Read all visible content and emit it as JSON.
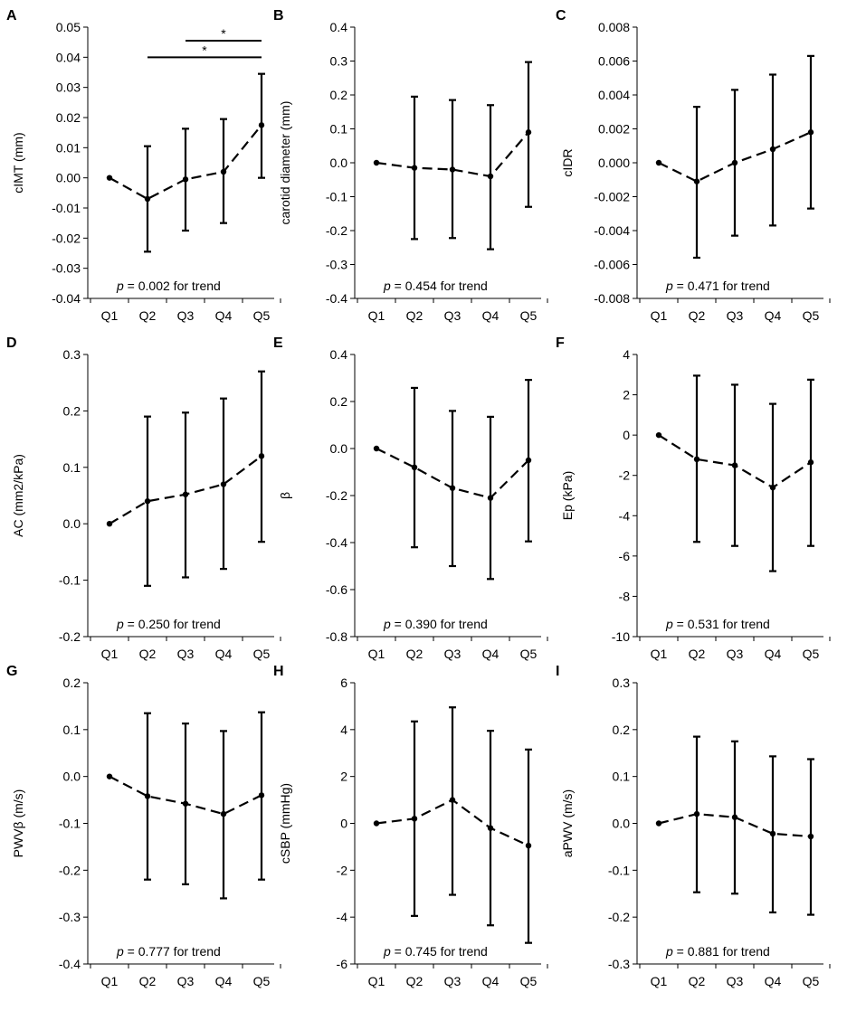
{
  "figure": {
    "background": "#ffffff",
    "ink": "#000000"
  },
  "chart_data": [
    {
      "panel": "A",
      "type": "line",
      "ylabel": "cIMT (mm)",
      "categories": [
        "Q1",
        "Q2",
        "Q3",
        "Q4",
        "Q5"
      ],
      "ylim": [
        -0.04,
        0.05
      ],
      "yticks": [
        -0.04,
        -0.03,
        -0.02,
        -0.01,
        0.0,
        0.01,
        0.02,
        0.03,
        0.04,
        0.05
      ],
      "ytick_labels": [
        "-0.04",
        "-0.03",
        "-0.02",
        "-0.01",
        "0.00",
        "0.01",
        "0.02",
        "0.03",
        "0.04",
        "0.05"
      ],
      "values": [
        0.0,
        -0.007,
        -0.0005,
        0.002,
        0.0175
      ],
      "err_low": [
        null,
        -0.0245,
        -0.0175,
        -0.015,
        0.0
      ],
      "err_high": [
        null,
        0.0105,
        0.0163,
        0.0195,
        0.0345
      ],
      "p_prefix": "p",
      "annotation": " = 0.002 for trend",
      "brackets": [
        {
          "from": "Q3",
          "to": "Q5",
          "y": 0.0455,
          "label": "*"
        },
        {
          "from": "Q2",
          "to": "Q5",
          "y": 0.04,
          "label": "*"
        }
      ]
    },
    {
      "panel": "B",
      "type": "line",
      "ylabel": "carotid diameter (mm)",
      "categories": [
        "Q1",
        "Q2",
        "Q3",
        "Q4",
        "Q5"
      ],
      "ylim": [
        -0.4,
        0.4
      ],
      "yticks": [
        -0.4,
        -0.3,
        -0.2,
        -0.1,
        0.0,
        0.1,
        0.2,
        0.3,
        0.4
      ],
      "ytick_labels": [
        "-0.4",
        "-0.3",
        "-0.2",
        "-0.1",
        "0.0",
        "0.1",
        "0.2",
        "0.3",
        "0.4"
      ],
      "values": [
        0.0,
        -0.015,
        -0.02,
        -0.04,
        0.09
      ],
      "err_low": [
        null,
        -0.225,
        -0.222,
        -0.255,
        -0.13
      ],
      "err_high": [
        null,
        0.195,
        0.185,
        0.17,
        0.297
      ],
      "p_prefix": "p",
      "annotation": " = 0.454 for trend"
    },
    {
      "panel": "C",
      "type": "line",
      "ylabel": "cIDR",
      "categories": [
        "Q1",
        "Q2",
        "Q3",
        "Q4",
        "Q5"
      ],
      "ylim": [
        -0.008,
        0.008
      ],
      "yticks": [
        -0.008,
        -0.006,
        -0.004,
        -0.002,
        0.0,
        0.002,
        0.004,
        0.006,
        0.008
      ],
      "ytick_labels": [
        "-0.008",
        "-0.006",
        "-0.004",
        "-0.002",
        "0.000",
        "0.002",
        "0.004",
        "0.006",
        "0.008"
      ],
      "values": [
        0.0,
        -0.0011,
        0.0,
        0.0008,
        0.0018
      ],
      "err_low": [
        null,
        -0.0056,
        -0.0043,
        -0.0037,
        -0.0027
      ],
      "err_high": [
        null,
        0.0033,
        0.0043,
        0.0052,
        0.0063
      ],
      "p_prefix": "p",
      "annotation": " = 0.471 for trend"
    },
    {
      "panel": "D",
      "type": "line",
      "ylabel": "AC (mm2/kPa)",
      "categories": [
        "Q1",
        "Q2",
        "Q3",
        "Q4",
        "Q5"
      ],
      "ylim": [
        -0.2,
        0.3
      ],
      "yticks": [
        -0.2,
        -0.1,
        0.0,
        0.1,
        0.2,
        0.3
      ],
      "ytick_labels": [
        "-0.2",
        "-0.1",
        "0.0",
        "0.1",
        "0.2",
        "0.3"
      ],
      "values": [
        0.0,
        0.04,
        0.052,
        0.07,
        0.12
      ],
      "err_low": [
        null,
        -0.11,
        -0.095,
        -0.08,
        -0.032
      ],
      "err_high": [
        null,
        0.19,
        0.197,
        0.222,
        0.27
      ],
      "p_prefix": "p",
      "annotation": " = 0.250 for trend"
    },
    {
      "panel": "E",
      "type": "line",
      "ylabel": "β",
      "categories": [
        "Q1",
        "Q2",
        "Q3",
        "Q4",
        "Q5"
      ],
      "ylim": [
        -0.8,
        0.4
      ],
      "yticks": [
        -0.8,
        -0.6,
        -0.4,
        -0.2,
        0.0,
        0.2,
        0.4
      ],
      "ytick_labels": [
        "-0.8",
        "-0.6",
        "-0.4",
        "-0.2",
        "0.0",
        "0.2",
        "0.4"
      ],
      "values": [
        0.0,
        -0.08,
        -0.168,
        -0.21,
        -0.05
      ],
      "err_low": [
        null,
        -0.42,
        -0.5,
        -0.555,
        -0.395
      ],
      "err_high": [
        null,
        0.258,
        0.16,
        0.135,
        0.292
      ],
      "p_prefix": "p",
      "annotation": " = 0.390 for trend"
    },
    {
      "panel": "F",
      "type": "line",
      "ylabel": "Ep (kPa)",
      "categories": [
        "Q1",
        "Q2",
        "Q3",
        "Q4",
        "Q5"
      ],
      "ylim": [
        -10,
        4
      ],
      "yticks": [
        -10,
        -8,
        -6,
        -4,
        -2,
        0,
        2,
        4
      ],
      "ytick_labels": [
        "-10",
        "-8",
        "-6",
        "-4",
        "-2",
        "0",
        "2",
        "4"
      ],
      "values": [
        0.0,
        -1.2,
        -1.5,
        -2.6,
        -1.35
      ],
      "err_low": [
        null,
        -5.3,
        -5.5,
        -6.75,
        -5.5
      ],
      "err_high": [
        null,
        2.95,
        2.5,
        1.55,
        2.75
      ],
      "p_prefix": "p",
      "annotation": " = 0.531 for trend"
    },
    {
      "panel": "G",
      "type": "line",
      "ylabel": "PWVβ (m/s)",
      "categories": [
        "Q1",
        "Q2",
        "Q3",
        "Q4",
        "Q5"
      ],
      "ylim": [
        -0.4,
        0.2
      ],
      "yticks": [
        -0.4,
        -0.3,
        -0.2,
        -0.1,
        0.0,
        0.1,
        0.2
      ],
      "ytick_labels": [
        "-0.4",
        "-0.3",
        "-0.2",
        "-0.1",
        "0.0",
        "0.1",
        "0.2"
      ],
      "values": [
        0.0,
        -0.042,
        -0.058,
        -0.08,
        -0.04
      ],
      "err_low": [
        null,
        -0.22,
        -0.23,
        -0.26,
        -0.22
      ],
      "err_high": [
        null,
        0.135,
        0.113,
        0.097,
        0.137
      ],
      "p_prefix": "p",
      "annotation": " = 0.777 for trend"
    },
    {
      "panel": "H",
      "type": "line",
      "ylabel": "cSBP (mmHg)",
      "categories": [
        "Q1",
        "Q2",
        "Q3",
        "Q4",
        "Q5"
      ],
      "ylim": [
        -6,
        6
      ],
      "yticks": [
        -6,
        -4,
        -2,
        0,
        2,
        4,
        6
      ],
      "ytick_labels": [
        "-6",
        "-4",
        "-2",
        "0",
        "2",
        "4",
        "6"
      ],
      "values": [
        0.0,
        0.2,
        1.0,
        -0.2,
        -0.95
      ],
      "err_low": [
        null,
        -3.95,
        -3.05,
        -4.35,
        -5.1
      ],
      "err_high": [
        null,
        4.35,
        4.95,
        3.95,
        3.15
      ],
      "p_prefix": "p",
      "annotation": " = 0.745 for trend"
    },
    {
      "panel": "I",
      "type": "line",
      "ylabel": "aPWV (m/s)",
      "categories": [
        "Q1",
        "Q2",
        "Q3",
        "Q4",
        "Q5"
      ],
      "ylim": [
        -0.3,
        0.3
      ],
      "yticks": [
        -0.3,
        -0.2,
        -0.1,
        0.0,
        0.1,
        0.2,
        0.3
      ],
      "ytick_labels": [
        "-0.3",
        "-0.2",
        "-0.1",
        "0.0",
        "0.1",
        "0.2",
        "0.3"
      ],
      "values": [
        0.0,
        0.02,
        0.013,
        -0.022,
        -0.028
      ],
      "err_low": [
        null,
        -0.147,
        -0.15,
        -0.19,
        -0.195
      ],
      "err_high": [
        null,
        0.185,
        0.175,
        0.143,
        0.137
      ],
      "p_prefix": "p",
      "annotation": " = 0.881 for trend"
    }
  ]
}
